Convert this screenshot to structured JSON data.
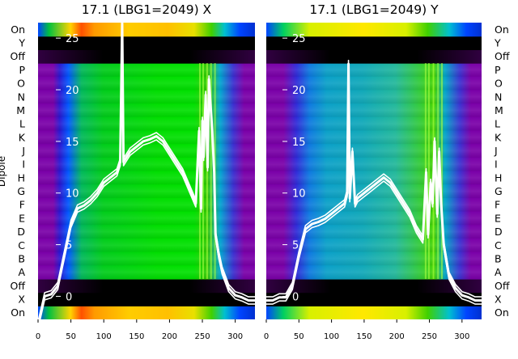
{
  "ylabel": "Dipole",
  "row_labels": [
    "On",
    "X",
    "Off",
    "A",
    "B",
    "C",
    "D",
    "E",
    "F",
    "G",
    "H",
    "I",
    "J",
    "K",
    "L",
    "M",
    "N",
    "O",
    "P",
    "Off",
    "Y",
    "On"
  ],
  "chart_data": [
    {
      "type": "heatmap",
      "title": "17.1 (LBG1=2049) X",
      "x_ticks": [
        0,
        50,
        100,
        150,
        200,
        250,
        300
      ],
      "xlim": [
        0,
        330
      ],
      "overlay_yticks": [
        0,
        5,
        10,
        15,
        20,
        25
      ],
      "overlay_ylim": [
        -2,
        26.5
      ],
      "overlay_line": {
        "x": [
          0,
          10,
          20,
          30,
          40,
          50,
          60,
          70,
          80,
          90,
          100,
          110,
          120,
          125,
          128,
          130,
          135,
          140,
          150,
          160,
          170,
          180,
          190,
          200,
          210,
          220,
          230,
          240,
          245,
          248,
          250,
          252,
          255,
          258,
          260,
          262,
          265,
          268,
          270,
          275,
          280,
          290,
          300,
          310,
          320,
          330
        ],
        "y": [
          -2.8,
          0,
          0.2,
          1,
          4,
          7,
          8.5,
          8.8,
          9.3,
          10,
          11,
          11.5,
          12,
          13,
          26.5,
          13,
          13.5,
          14,
          14.5,
          15,
          15.2,
          15.5,
          15,
          14,
          13,
          12,
          10.5,
          9,
          16,
          8.5,
          17,
          13.5,
          19.5,
          12.5,
          21,
          19,
          16,
          12,
          6,
          4,
          2.5,
          0.8,
          0.1,
          -0.1,
          -0.4,
          -0.4
        ]
      }
    },
    {
      "type": "heatmap",
      "title": "17.1 (LBG1=2049) Y",
      "x_ticks": [
        0,
        50,
        100,
        150,
        200,
        250,
        300
      ],
      "xlim": [
        0,
        330
      ],
      "overlay_yticks": [
        0,
        5,
        10,
        15,
        20,
        25
      ],
      "overlay_ylim": [
        -2,
        26.5
      ],
      "overlay_line": {
        "x": [
          0,
          10,
          20,
          30,
          40,
          50,
          60,
          70,
          80,
          90,
          100,
          110,
          120,
          124,
          126,
          128,
          132,
          136,
          140,
          150,
          160,
          170,
          180,
          190,
          200,
          210,
          220,
          230,
          240,
          245,
          248,
          252,
          255,
          258,
          262,
          265,
          268,
          272,
          280,
          290,
          300,
          310,
          320,
          330
        ],
        "y": [
          -0.4,
          -0.4,
          -0.1,
          -0.1,
          1,
          4,
          6.5,
          7,
          7.2,
          7.5,
          8,
          8.5,
          9,
          10,
          22.5,
          9.5,
          14,
          9,
          9.5,
          10,
          10.5,
          11,
          11.5,
          11,
          10,
          9,
          8,
          6.5,
          5.5,
          12,
          6,
          11,
          9,
          15,
          8,
          14,
          9,
          5,
          2,
          0.8,
          0.1,
          -0.1,
          -0.4,
          -0.4
        ]
      }
    }
  ]
}
